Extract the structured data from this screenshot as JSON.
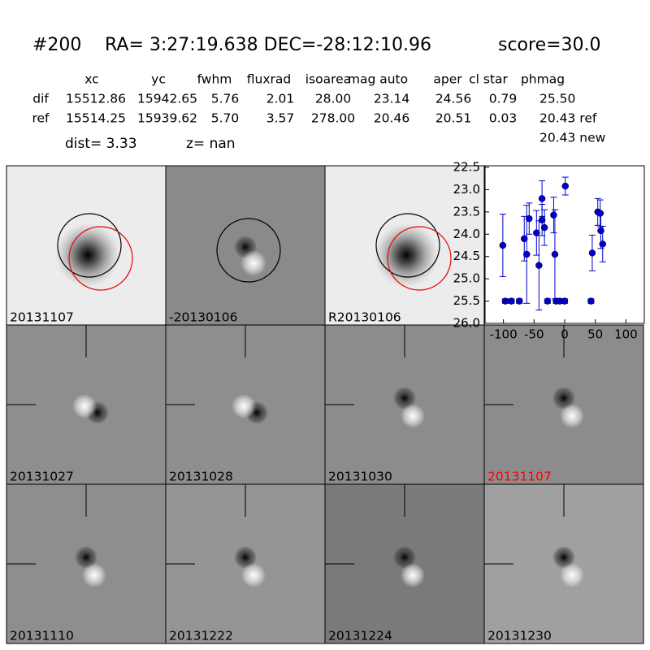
{
  "header": {
    "id": "#200",
    "coords": "RA= 3:27:19.638 DEC=-28:12:10.96",
    "score": "score=30.0"
  },
  "table": {
    "columns": [
      "xc",
      "yc",
      "fwhm",
      "fluxrad",
      "isoarea",
      "mag auto",
      "aper",
      "cl star",
      "phmag"
    ],
    "rows": [
      [
        "dif",
        "15512.86",
        "15942.65",
        "5.76",
        "2.01",
        "28.00",
        "23.14",
        "24.56",
        "0.79",
        "25.50"
      ],
      [
        "ref",
        "15514.25",
        "15939.62",
        "5.70",
        "3.57",
        "278.00",
        "20.46",
        "20.51",
        "0.03",
        "20.43 ref"
      ]
    ],
    "extra": "20.43 new"
  },
  "dist": "dist=  3.33",
  "z": "z=   nan",
  "stamps": [
    "20131107",
    "-20130106",
    "R20130106",
    "20131027",
    "20131028",
    "20131030",
    "20131107",
    "20131110",
    "20131222",
    "20131224",
    "20131230"
  ],
  "chart_data": {
    "type": "scatter",
    "series": [
      {
        "color": "#0000cc",
        "x": [
          -101,
          -97,
          -87,
          -74,
          -66,
          -62,
          -58,
          -46,
          -42,
          -37,
          -37,
          -33,
          -28,
          -18,
          -16,
          -14,
          -8,
          0,
          1,
          43,
          45,
          54,
          58,
          59,
          62
        ],
        "values": [
          24.25,
          25.5,
          25.5,
          25.5,
          24.1,
          24.45,
          23.65,
          23.97,
          24.7,
          23.2,
          23.68,
          23.85,
          25.5,
          23.57,
          24.45,
          25.5,
          25.5,
          25.5,
          22.92,
          25.5,
          24.42,
          23.5,
          23.53,
          23.92,
          24.22
        ],
        "errors": [
          0.7,
          0.05,
          0.05,
          0.05,
          0.5,
          1.1,
          0.35,
          0.5,
          1.0,
          0.4,
          0.35,
          0.4,
          0.05,
          0.4,
          1.0,
          0.05,
          0.05,
          0.05,
          0.2,
          0.05,
          0.4,
          0.3,
          0.3,
          0.4,
          0.4
        ]
      }
    ],
    "xlim": [
      -130,
      130
    ],
    "xticks": [
      -100,
      -50,
      0,
      50,
      100
    ],
    "ylim": [
      22.5,
      26.0
    ],
    "inverted": true,
    "yticks": [
      22.5,
      {
        "value": 23,
        "label": "23.0"
      },
      23.5,
      {
        "value": 24,
        "label": "24.0"
      },
      24.5,
      {
        "value": 25,
        "label": "25.0"
      },
      25.5,
      {
        "value": 26,
        "label": "26.0"
      }
    ]
  }
}
